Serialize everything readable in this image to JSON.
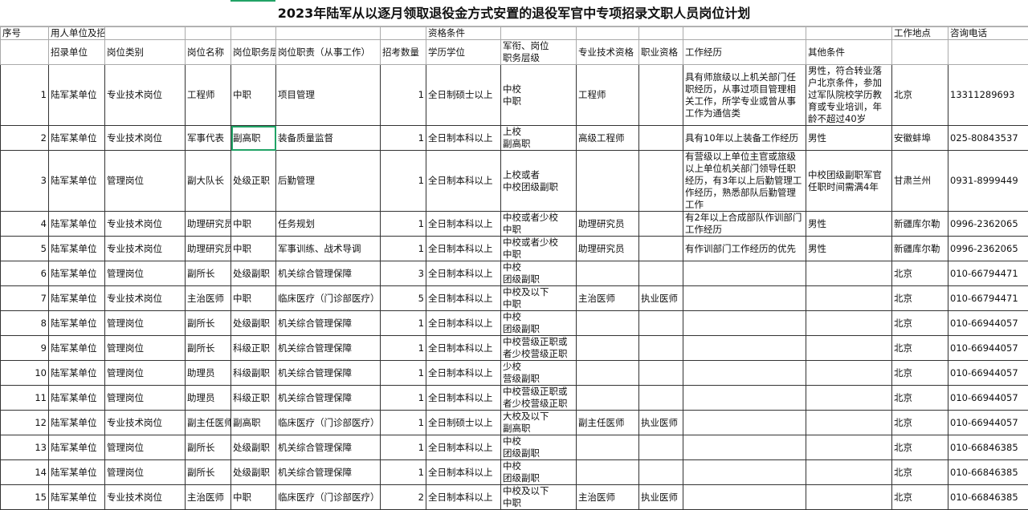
{
  "title": "2023年陆军从以逐月领取退役金方式安置的退役军官中专项招录文职人员岗位计划",
  "header1": [
    "序号",
    "用人单位及招考岗位",
    "",
    "",
    "",
    "",
    "",
    "资格条件",
    "",
    "",
    "",
    "",
    "",
    "工作地点",
    "咨询电话"
  ],
  "header2": [
    "",
    "招录单位",
    "岗位类别",
    "岗位名称",
    "岗位职务层",
    "岗位职责（从事工作）",
    "招考数量",
    "学历学位",
    "军衔、岗位\n职务层级",
    "专业技术资格",
    "职业资格",
    "工作经历",
    "其他条件",
    "",
    ""
  ],
  "rows": [
    [
      "1",
      "陆军某单位",
      "专业技术岗位",
      "工程师",
      "中职",
      "项目管理",
      "1",
      "全日制硕士以上",
      "中校\n中职",
      "工程师",
      "",
      "具有师旅级以上机关部门任职经历，从事过项目管理相关工作，所学专业或曾从事工作为通信类",
      "男性，符合转业落户北京条件，参加过军队院校学历教育或专业培训，年龄不超过40岁",
      "北京",
      "13311289693"
    ],
    [
      "2",
      "陆军某单位",
      "专业技术岗位",
      "军事代表",
      "副高职",
      "装备质量监督",
      "1",
      "全日制本科以上",
      "上校\n副高职",
      "高级工程师",
      "",
      "具有10年以上装备工作经历",
      "男性",
      "安徽蚌埠",
      "025-80843537"
    ],
    [
      "3",
      "陆军某单位",
      "管理岗位",
      "副大队长",
      "处级正职",
      "后勤管理",
      "1",
      "全日制本科以上",
      "上校或者\n中校团级副职",
      "",
      "",
      "有营级以上单位主官或旅级以上单位机关部门领导任职经历，有3年以上后勤管理工作经历，熟悉部队后勤管理工作",
      "中校团级副职军官任职时间需满4年",
      "甘肃兰州",
      "0931-8999449"
    ],
    [
      "4",
      "陆军某单位",
      "专业技术岗位",
      "助理研究员",
      "中职",
      "任务规划",
      "1",
      "全日制本科以上",
      "中校或者少校\n中职",
      "助理研究员",
      "",
      "有2年以上合成部队作训部门工作经历",
      "男性",
      "新疆库尔勒",
      "0996-2362065"
    ],
    [
      "5",
      "陆军某单位",
      "专业技术岗位",
      "助理研究员",
      "中职",
      "军事训练、战术导调",
      "1",
      "全日制本科以上",
      "中校或者少校\n中职",
      "助理研究员",
      "",
      "有作训部门工作经历的优先",
      "男性",
      "新疆库尔勒",
      "0996-2362065"
    ],
    [
      "6",
      "陆军某单位",
      "管理岗位",
      "副所长",
      "处级副职",
      "机关综合管理保障",
      "3",
      "全日制本科以上",
      "中校\n团级副职",
      "",
      "",
      "",
      "",
      "北京",
      "010-66794471"
    ],
    [
      "7",
      "陆军某单位",
      "专业技术岗位",
      "主治医师",
      "中职",
      "临床医疗（门诊部医疗）",
      "5",
      "全日制本科以上",
      "中校及以下\n中职",
      "主治医师",
      "执业医师",
      "",
      "",
      "北京",
      "010-66794471"
    ],
    [
      "8",
      "陆军某单位",
      "管理岗位",
      "副所长",
      "处级副职",
      "机关综合管理保障",
      "1",
      "全日制本科以上",
      "中校\n团级副职",
      "",
      "",
      "",
      "",
      "北京",
      "010-66944057"
    ],
    [
      "9",
      "陆军某单位",
      "管理岗位",
      "副所长",
      "科级正职",
      "机关综合管理保障",
      "1",
      "全日制本科以上",
      "中校营级正职或\n者少校营级正职",
      "",
      "",
      "",
      "",
      "北京",
      "010-66944057"
    ],
    [
      "10",
      "陆军某单位",
      "管理岗位",
      "助理员",
      "科级副职",
      "机关综合管理保障",
      "1",
      "全日制本科以上",
      "少校\n营级副职",
      "",
      "",
      "",
      "",
      "北京",
      "010-66944057"
    ],
    [
      "11",
      "陆军某单位",
      "管理岗位",
      "助理员",
      "科级正职",
      "机关综合管理保障",
      "1",
      "全日制本科以上",
      "中校营级正职或\n者少校营级正职",
      "",
      "",
      "",
      "",
      "北京",
      "010-66944057"
    ],
    [
      "12",
      "陆军某单位",
      "专业技术岗位",
      "副主任医师",
      "副高职",
      "临床医疗（门诊部医疗）",
      "1",
      "全日制硕士以上",
      "大校及以下\n副高职",
      "副主任医师",
      "执业医师",
      "",
      "",
      "北京",
      "010-66944057"
    ],
    [
      "13",
      "陆军某单位",
      "管理岗位",
      "副所长",
      "处级副职",
      "机关综合管理保障",
      "1",
      "全日制本科以上",
      "中校\n团级副职",
      "",
      "",
      "",
      "",
      "北京",
      "010-66846385"
    ],
    [
      "14",
      "陆军某单位",
      "管理岗位",
      "副所长",
      "处级副职",
      "机关综合管理保障",
      "1",
      "全日制本科以上",
      "中校\n团级副职",
      "",
      "",
      "",
      "",
      "北京",
      "010-66846385"
    ],
    [
      "15",
      "陆军某单位",
      "专业技术岗位",
      "主治医师",
      "中职",
      "临床医疗（门诊部医疗）",
      "2",
      "全日制本科以上",
      "中校及以下\n中职",
      "主治医师",
      "执业医师",
      "",
      "",
      "北京",
      "010-66846385"
    ]
  ],
  "colors": {
    "selection": "#21a366"
  }
}
